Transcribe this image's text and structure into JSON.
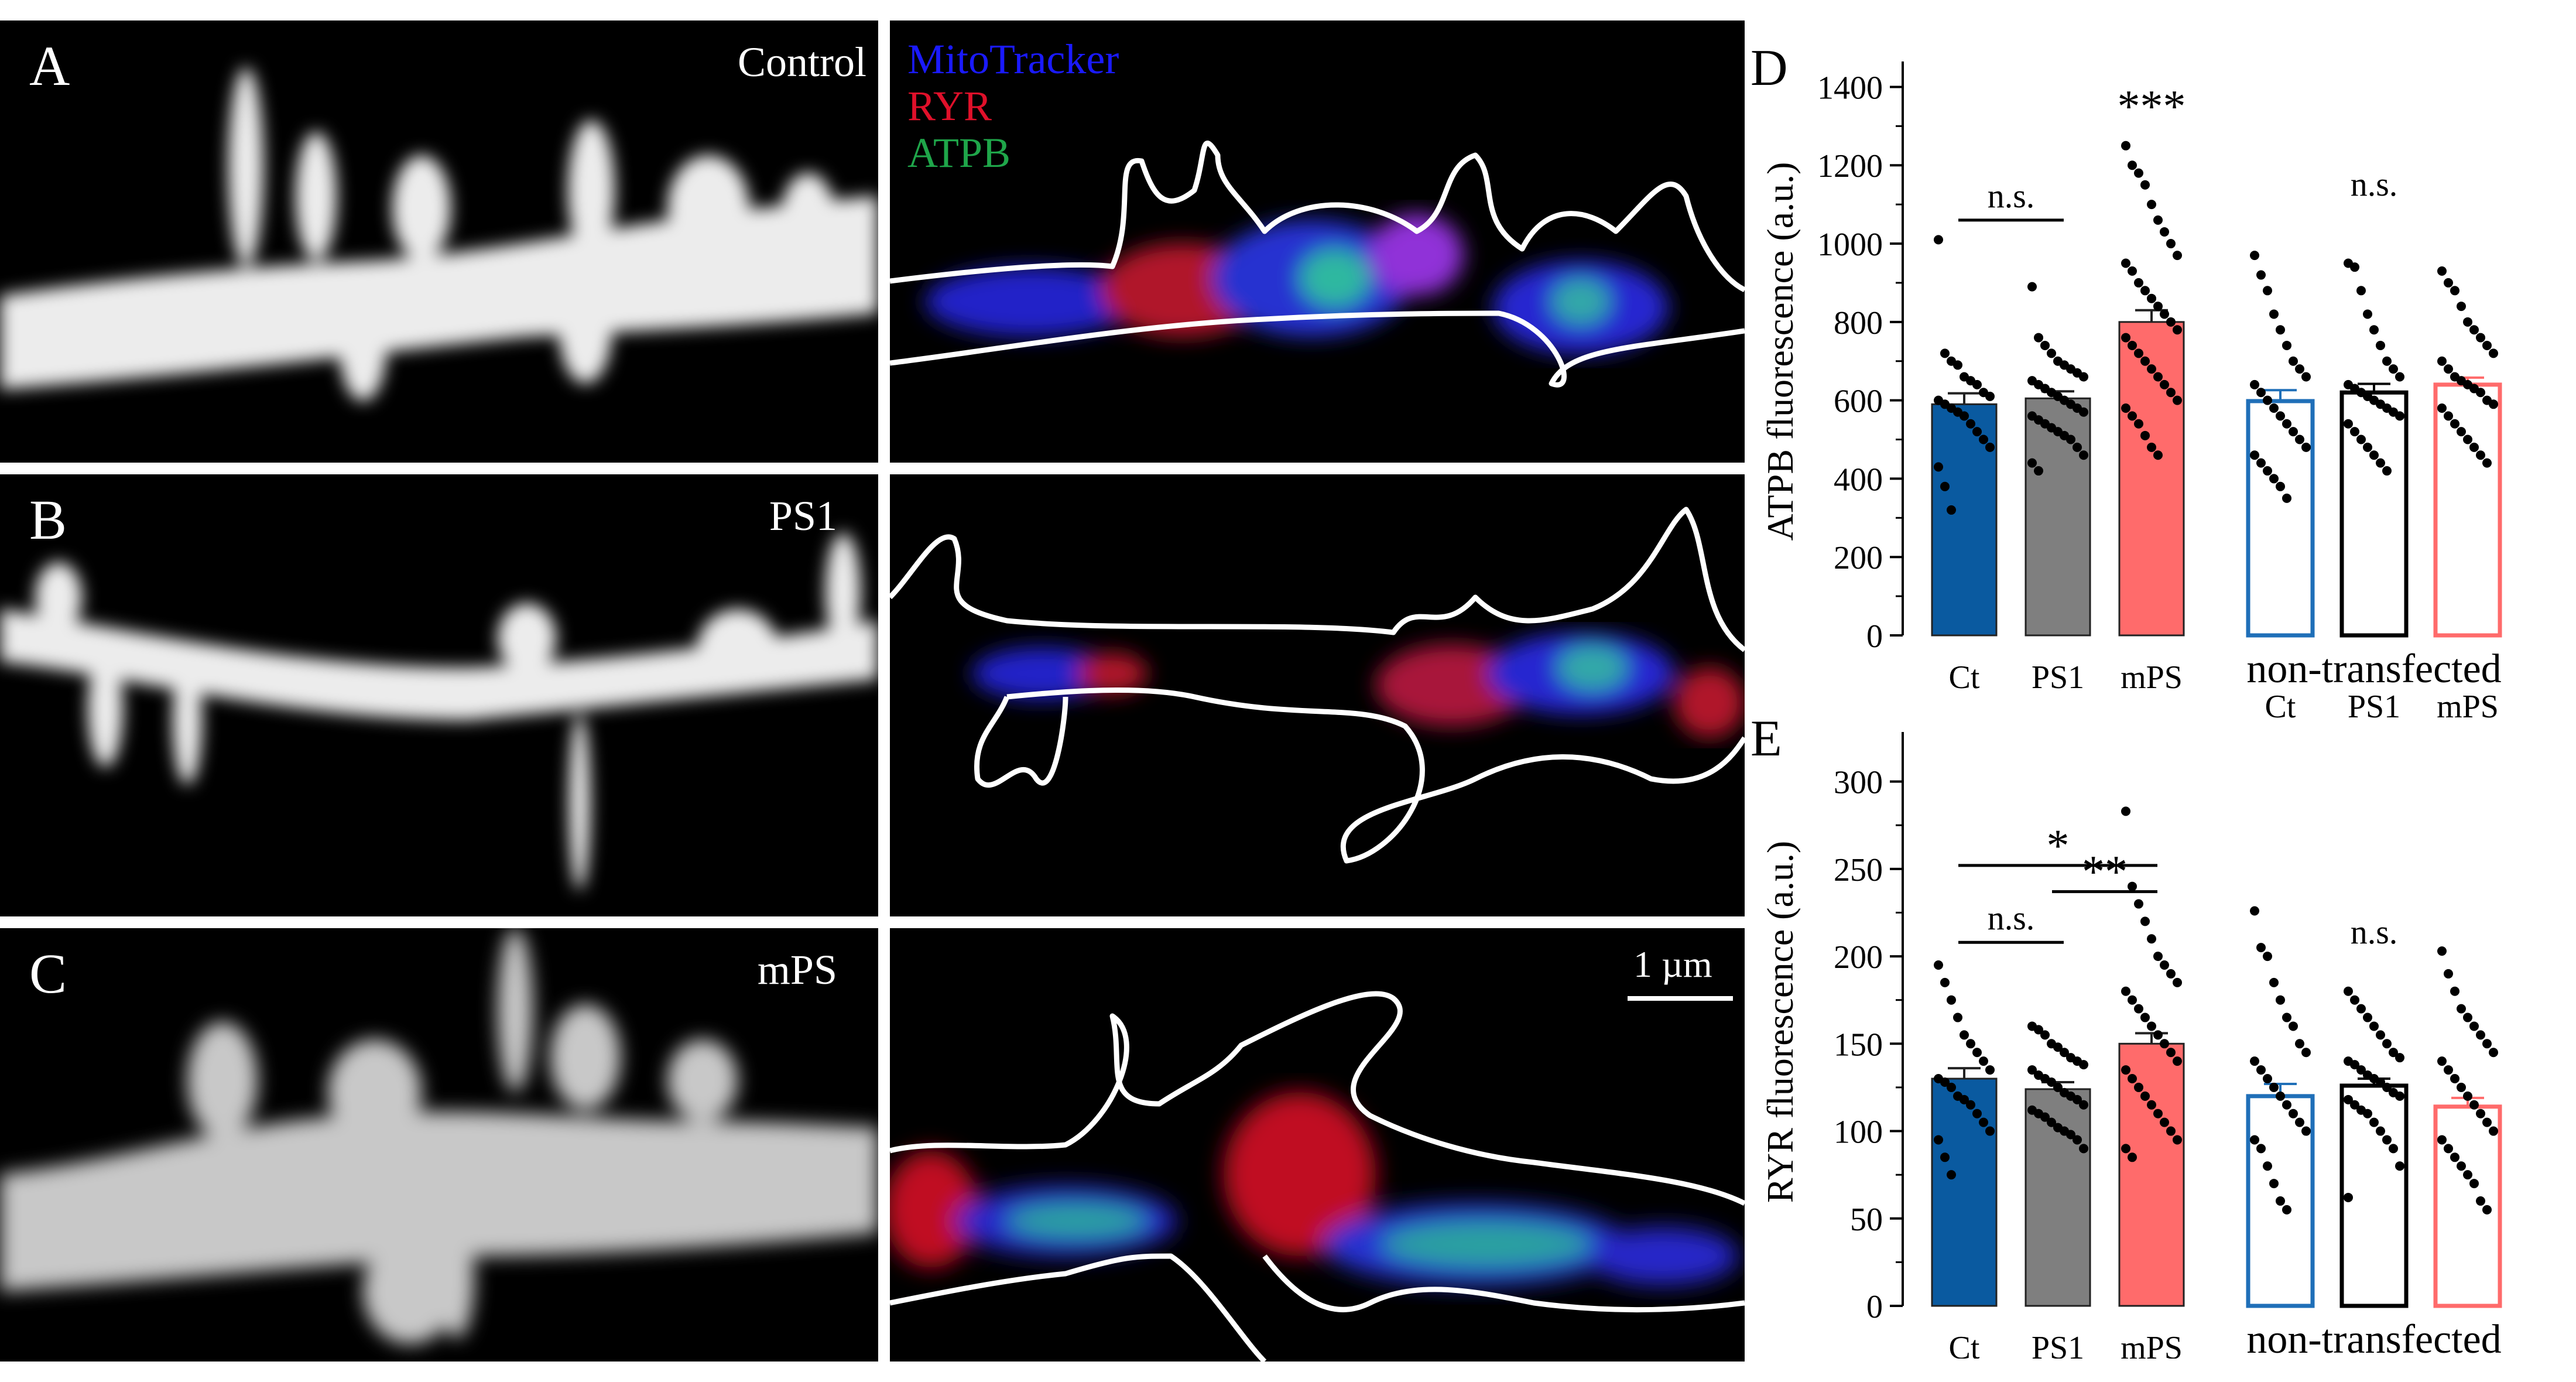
{
  "figure": {
    "panel_a": {
      "letter": "A",
      "condition": "Control"
    },
    "panel_b": {
      "letter": "B",
      "condition": "PS1"
    },
    "panel_c": {
      "letter": "C",
      "condition": "mPS"
    },
    "legend": {
      "mitotracker": "MitoTracker",
      "ryr": "RYR",
      "atpb": "ATPB",
      "mitotracker_color": "#1a1aff",
      "ryr_color": "#e0102a",
      "atpb_color": "#1fa64a"
    },
    "scale_bar": "1 µm"
  },
  "chart_data": [
    {
      "type": "bar",
      "panel": "D",
      "ylabel": "ATPB fluorescence (a.u.)",
      "ylim": [
        0,
        1450
      ],
      "yticks": [
        0,
        200,
        400,
        600,
        800,
        1000,
        1200,
        1400
      ],
      "categories": [
        "Ct",
        "PS1",
        "mPS",
        "Ct",
        "PS1",
        "mPS"
      ],
      "group_label": "non-transfected",
      "values": [
        590,
        605,
        800,
        598,
        620,
        640
      ],
      "errors": [
        28,
        18,
        30,
        28,
        22,
        18
      ],
      "fill": [
        "#0a5aa0",
        "#7f7f7f",
        "#ff6b6b",
        "none",
        "none",
        "none"
      ],
      "stroke": [
        "#222222",
        "#222222",
        "#222222",
        "#1f6fb8",
        "#000000",
        "#ff6b6b"
      ],
      "points": [
        [
          1010,
          720,
          700,
          690,
          660,
          650,
          640,
          620,
          610,
          600,
          590,
          580,
          570,
          560,
          540,
          520,
          500,
          480,
          430,
          380,
          320
        ],
        [
          890,
          760,
          740,
          720,
          700,
          690,
          680,
          670,
          660,
          650,
          640,
          630,
          620,
          610,
          600,
          590,
          580,
          570,
          560,
          550,
          540,
          530,
          520,
          510,
          500,
          480,
          460,
          440,
          420
        ],
        [
          1250,
          1200,
          1180,
          1150,
          1100,
          1060,
          1030,
          1000,
          970,
          950,
          930,
          900,
          880,
          860,
          840,
          820,
          800,
          780,
          760,
          740,
          720,
          700,
          680,
          660,
          640,
          620,
          600,
          580,
          560,
          540,
          510,
          480,
          460
        ],
        [
          970,
          920,
          880,
          820,
          780,
          740,
          700,
          680,
          660,
          640,
          620,
          600,
          580,
          560,
          540,
          520,
          500,
          480,
          460,
          440,
          420,
          400,
          380,
          350
        ],
        [
          950,
          940,
          880,
          820,
          780,
          740,
          700,
          680,
          660,
          640,
          630,
          620,
          610,
          600,
          590,
          580,
          570,
          560,
          540,
          520,
          500,
          480,
          460,
          440,
          420
        ],
        [
          930,
          900,
          880,
          840,
          800,
          780,
          760,
          740,
          720,
          700,
          680,
          660,
          650,
          640,
          630,
          620,
          600,
          590,
          580,
          560,
          540,
          520,
          500,
          480,
          460,
          440
        ]
      ],
      "annotations": [
        {
          "text": "n.s.",
          "from": 0,
          "to": 1,
          "y": 1060,
          "bar": true
        },
        {
          "text": "***",
          "at": 2,
          "y": 1300,
          "bar": false
        },
        {
          "text": "n.s.",
          "at": 4,
          "y": 1090,
          "bar": false
        }
      ]
    },
    {
      "type": "bar",
      "panel": "E",
      "ylabel": "RYR fluorescence (a.u.)",
      "ylim": [
        0,
        325
      ],
      "yticks": [
        0,
        50,
        100,
        150,
        200,
        250,
        300
      ],
      "categories": [
        "Ct",
        "PS1",
        "mPS",
        "Ct",
        "PS1",
        "mPS"
      ],
      "group_label": "non-transfected",
      "values": [
        130,
        124,
        150,
        120,
        126,
        114
      ],
      "errors": [
        6,
        4,
        6,
        7,
        4,
        5
      ],
      "fill": [
        "#0a5aa0",
        "#7f7f7f",
        "#ff6b6b",
        "none",
        "none",
        "none"
      ],
      "stroke": [
        "#222222",
        "#222222",
        "#222222",
        "#1f6fb8",
        "#000000",
        "#ff6b6b"
      ],
      "points": [
        [
          195,
          185,
          175,
          165,
          155,
          150,
          145,
          140,
          135,
          130,
          128,
          125,
          120,
          118,
          115,
          110,
          105,
          100,
          95,
          85,
          75
        ],
        [
          160,
          158,
          155,
          150,
          148,
          145,
          142,
          140,
          138,
          135,
          132,
          130,
          128,
          125,
          122,
          120,
          118,
          115,
          112,
          110,
          108,
          105,
          102,
          100,
          98,
          95,
          90
        ],
        [
          283,
          240,
          230,
          220,
          210,
          200,
          195,
          190,
          185,
          180,
          175,
          170,
          165,
          160,
          155,
          150,
          145,
          140,
          135,
          130,
          125,
          120,
          115,
          110,
          105,
          100,
          95,
          90,
          85
        ],
        [
          226,
          205,
          200,
          185,
          175,
          165,
          160,
          150,
          145,
          140,
          135,
          130,
          125,
          120,
          115,
          110,
          105,
          100,
          95,
          90,
          80,
          70,
          60,
          55
        ],
        [
          180,
          175,
          170,
          165,
          160,
          155,
          150,
          145,
          142,
          140,
          138,
          135,
          132,
          130,
          128,
          125,
          122,
          120,
          118,
          115,
          112,
          110,
          105,
          100,
          95,
          90,
          80,
          62
        ],
        [
          203,
          190,
          180,
          170,
          165,
          160,
          155,
          150,
          145,
          140,
          135,
          130,
          125,
          120,
          115,
          110,
          105,
          100,
          95,
          90,
          85,
          80,
          75,
          70,
          60,
          55
        ]
      ],
      "annotations": [
        {
          "text": "*",
          "from": 0,
          "to": 2,
          "y": 252,
          "bar": true
        },
        {
          "text": "**",
          "from": 1,
          "to": 2,
          "y": 237,
          "bar": true
        },
        {
          "text": "n.s.",
          "from": 0,
          "to": 1,
          "y": 208,
          "bar": true
        },
        {
          "text": "n.s.",
          "at": 4,
          "y": 200,
          "bar": false
        }
      ]
    }
  ]
}
